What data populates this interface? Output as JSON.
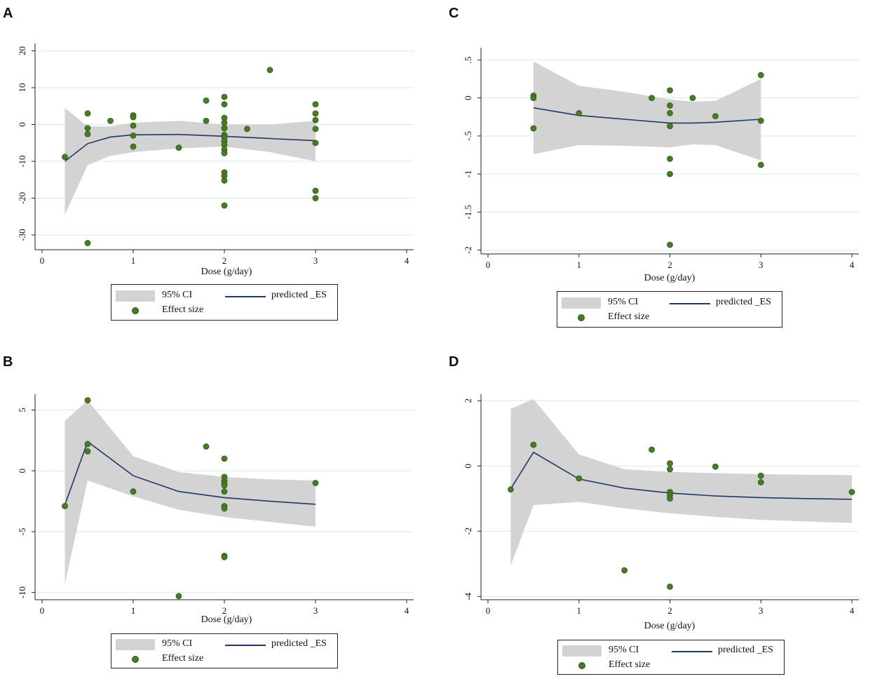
{
  "legend": {
    "ci": "95% CI",
    "line": "predicted _ES",
    "dots": "Effect size"
  },
  "colors": {
    "ci": "#d3d3d3",
    "line": "#1f3864",
    "dot": "#4a7a26",
    "grid": "#dce9ea",
    "axis": "#222222"
  },
  "chart_data": [
    {
      "panel": "A",
      "type": "scatter",
      "xlabel": "Dose (g/day)",
      "ylabel": "",
      "xlim": [
        0,
        4
      ],
      "ylim": [
        -34,
        22
      ],
      "xticks": [
        0,
        1,
        2,
        3,
        4
      ],
      "xtick_labels": [
        "0",
        "1",
        "2",
        "3",
        "4"
      ],
      "yticks": [
        20,
        10,
        0,
        -10,
        -20,
        -30
      ],
      "ytick_labels": [
        "20",
        "10",
        "0",
        "-10",
        "-20",
        "-30"
      ],
      "ci_band": {
        "x": [
          0.25,
          0.5,
          0.75,
          1.0,
          1.5,
          2.0,
          2.5,
          3.0
        ],
        "upper": [
          4.5,
          -0.5,
          -0.5,
          0.5,
          1,
          0,
          0,
          1
        ],
        "lower": [
          -24.5,
          -11,
          -8.5,
          -7.5,
          -6.5,
          -6,
          -7.5,
          -10
        ]
      },
      "predicted": {
        "x": [
          0.25,
          0.5,
          0.75,
          1.0,
          1.5,
          2.0,
          2.5,
          3.0
        ],
        "y": [
          -10,
          -5.2,
          -3.4,
          -2.8,
          -2.7,
          -3.2,
          -3.8,
          -4.4
        ]
      },
      "points": {
        "x": [
          0.25,
          0.5,
          0.5,
          0.5,
          0.5,
          0.75,
          1,
          1,
          1,
          1,
          1,
          1.5,
          1.8,
          1.8,
          2,
          2,
          2,
          2,
          2,
          2,
          2,
          2,
          2,
          2,
          2,
          2,
          2,
          2,
          2,
          2,
          2,
          2.25,
          2.5,
          3,
          3,
          3,
          3,
          3,
          3,
          3
        ],
        "y": [
          -8.8,
          3,
          -1,
          -2.6,
          -32.2,
          1,
          2.5,
          2,
          -0.3,
          -3,
          -6,
          -6.3,
          6.5,
          1,
          7.5,
          5.5,
          1.8,
          0.5,
          -1,
          -2.8,
          -3.5,
          -4.5,
          -5.5,
          -6.8,
          -7.8,
          -13,
          -14,
          -15.2,
          -22,
          -1,
          -1,
          -1.2,
          14.8,
          5.5,
          3,
          1.2,
          -1.2,
          -5,
          -18,
          -20
        ]
      }
    },
    {
      "panel": "B",
      "type": "scatter",
      "xlabel": "Dose (g/day)",
      "ylabel": "",
      "xlim": [
        0,
        4
      ],
      "ylim": [
        -10.6,
        6.3
      ],
      "xticks": [
        0,
        1,
        2,
        3,
        4
      ],
      "xtick_labels": [
        "0",
        "1",
        "2",
        "3",
        "4"
      ],
      "yticks": [
        5,
        0,
        -5,
        -10
      ],
      "ytick_labels": [
        "5",
        "0",
        "-5",
        "-10"
      ],
      "ci_band": {
        "x": [
          0.25,
          0.5,
          1.0,
          1.5,
          2.0,
          2.5,
          3.0
        ],
        "upper": [
          4.1,
          5.8,
          1.2,
          -0.1,
          -0.5,
          -0.7,
          -0.8
        ],
        "lower": [
          -9.3,
          -0.8,
          -2.1,
          -3.2,
          -3.8,
          -4.2,
          -4.6
        ]
      },
      "predicted": {
        "x": [
          0.25,
          0.5,
          1.0,
          1.5,
          2.0,
          2.5,
          3.0
        ],
        "y": [
          -2.8,
          2.4,
          -0.4,
          -1.7,
          -2.2,
          -2.5,
          -2.75
        ]
      },
      "points": {
        "x": [
          0.25,
          0.5,
          0.5,
          0.5,
          1,
          1.5,
          1.8,
          2,
          2,
          2,
          2,
          2,
          2,
          2,
          2,
          2,
          2,
          3
        ],
        "y": [
          -2.9,
          5.8,
          2.2,
          1.6,
          -1.7,
          -10.3,
          2,
          1,
          -0.5,
          -0.8,
          -1,
          -1.7,
          -2.9,
          -3.1,
          -7,
          -7.1,
          -1.2,
          -1
        ]
      }
    },
    {
      "panel": "C",
      "type": "scatter",
      "xlabel": "Dose (g/day)",
      "ylabel": "",
      "xlim": [
        0,
        4
      ],
      "ylim": [
        -2.05,
        0.66
      ],
      "xticks": [
        0,
        1,
        2,
        3,
        4
      ],
      "xtick_labels": [
        "0",
        "1",
        "2",
        "3",
        "4"
      ],
      "yticks": [
        0.5,
        0,
        -0.5,
        -1,
        -1.5,
        -2
      ],
      "ytick_labels": [
        ".5",
        "0",
        "-.5",
        "-1",
        "-1.5",
        "-2"
      ],
      "ci_band": {
        "x": [
          0.5,
          1.0,
          1.5,
          2.0,
          2.25,
          2.5,
          3.0
        ],
        "upper": [
          0.48,
          0.16,
          0.08,
          -0.02,
          -0.05,
          -0.04,
          0.25
        ],
        "lower": [
          -0.74,
          -0.62,
          -0.63,
          -0.65,
          -0.61,
          -0.62,
          -0.82
        ]
      },
      "predicted": {
        "x": [
          0.5,
          1.0,
          1.5,
          2.0,
          2.25,
          2.5,
          3.0
        ],
        "y": [
          -0.13,
          -0.23,
          -0.28,
          -0.33,
          -0.33,
          -0.32,
          -0.28
        ]
      },
      "points": {
        "x": [
          0.5,
          0.5,
          0.5,
          1,
          1.8,
          2,
          2,
          2,
          2,
          2,
          2,
          2,
          2.25,
          2.5,
          3,
          3,
          3
        ],
        "y": [
          0.03,
          0.0,
          -0.4,
          -0.2,
          0.0,
          0.1,
          -0.1,
          -0.2,
          -0.37,
          -0.8,
          -1.0,
          -1.93,
          0.0,
          -0.24,
          0.3,
          -0.3,
          -0.88
        ]
      }
    },
    {
      "panel": "D",
      "type": "scatter",
      "xlabel": "Dose (g/day)",
      "ylabel": "",
      "xlim": [
        0,
        4
      ],
      "ylim": [
        -4.1,
        2.2
      ],
      "xticks": [
        0,
        1,
        2,
        3,
        4
      ],
      "xtick_labels": [
        "0",
        "1",
        "2",
        "3",
        "4"
      ],
      "yticks": [
        2,
        0,
        -2,
        -4
      ],
      "ytick_labels": [
        "2",
        "0",
        "-2",
        "-4"
      ],
      "ci_band": {
        "x": [
          0.25,
          0.5,
          1.0,
          1.5,
          2.0,
          2.5,
          3.0,
          3.5,
          4.0
        ],
        "upper": [
          1.75,
          2.05,
          0.35,
          -0.1,
          -0.18,
          -0.22,
          -0.25,
          -0.27,
          -0.28
        ],
        "lower": [
          -3.05,
          -1.2,
          -1.1,
          -1.3,
          -1.45,
          -1.56,
          -1.65,
          -1.7,
          -1.75
        ]
      },
      "predicted": {
        "x": [
          0.25,
          0.5,
          1.0,
          1.5,
          2.0,
          2.5,
          3.0,
          3.5,
          4.0
        ],
        "y": [
          -0.7,
          0.42,
          -0.4,
          -0.68,
          -0.83,
          -0.92,
          -0.97,
          -1.0,
          -1.02
        ]
      },
      "points": {
        "x": [
          0.25,
          0.5,
          1,
          1.5,
          1.8,
          2,
          2,
          2,
          2,
          2,
          2,
          2.5,
          3,
          3,
          4
        ],
        "y": [
          -0.72,
          0.65,
          -0.38,
          -3.2,
          0.5,
          0.08,
          -0.1,
          -0.8,
          -0.9,
          -1.0,
          -3.7,
          -0.02,
          -0.3,
          -0.5,
          -0.8
        ]
      }
    }
  ]
}
